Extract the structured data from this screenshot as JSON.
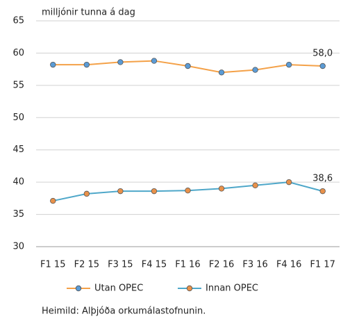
{
  "chart_data": {
    "type": "line",
    "y_label": "milljónir tunna á dag",
    "categories": [
      "F1 15",
      "F2 15",
      "F3 15",
      "F4 15",
      "F1 16",
      "F2 16",
      "F3 16",
      "F4 16",
      "F1 17"
    ],
    "series": [
      {
        "name": "Utan OPEC",
        "color": "#f4a148",
        "marker_color": "#5b9bd5",
        "values": [
          58.2,
          58.2,
          58.6,
          58.8,
          58.0,
          57.0,
          57.4,
          58.2,
          58.0
        ],
        "value_labels": [
          null,
          null,
          null,
          null,
          null,
          null,
          null,
          null,
          "58,0"
        ]
      },
      {
        "name": "Innan OPEC",
        "color": "#4ea7c9",
        "marker_color": "#e8914a",
        "values": [
          37.1,
          38.2,
          38.6,
          38.6,
          38.7,
          39.0,
          39.5,
          40.0,
          38.6
        ],
        "value_labels": [
          null,
          null,
          null,
          null,
          null,
          null,
          null,
          null,
          "38,6"
        ]
      }
    ],
    "ylim": [
      30,
      65
    ],
    "yticks": [
      30,
      35,
      40,
      45,
      50,
      55,
      60,
      65
    ],
    "grid": true,
    "legend": "bottom",
    "source": "Heimild: Alþjóða orkumálastofnunin."
  }
}
